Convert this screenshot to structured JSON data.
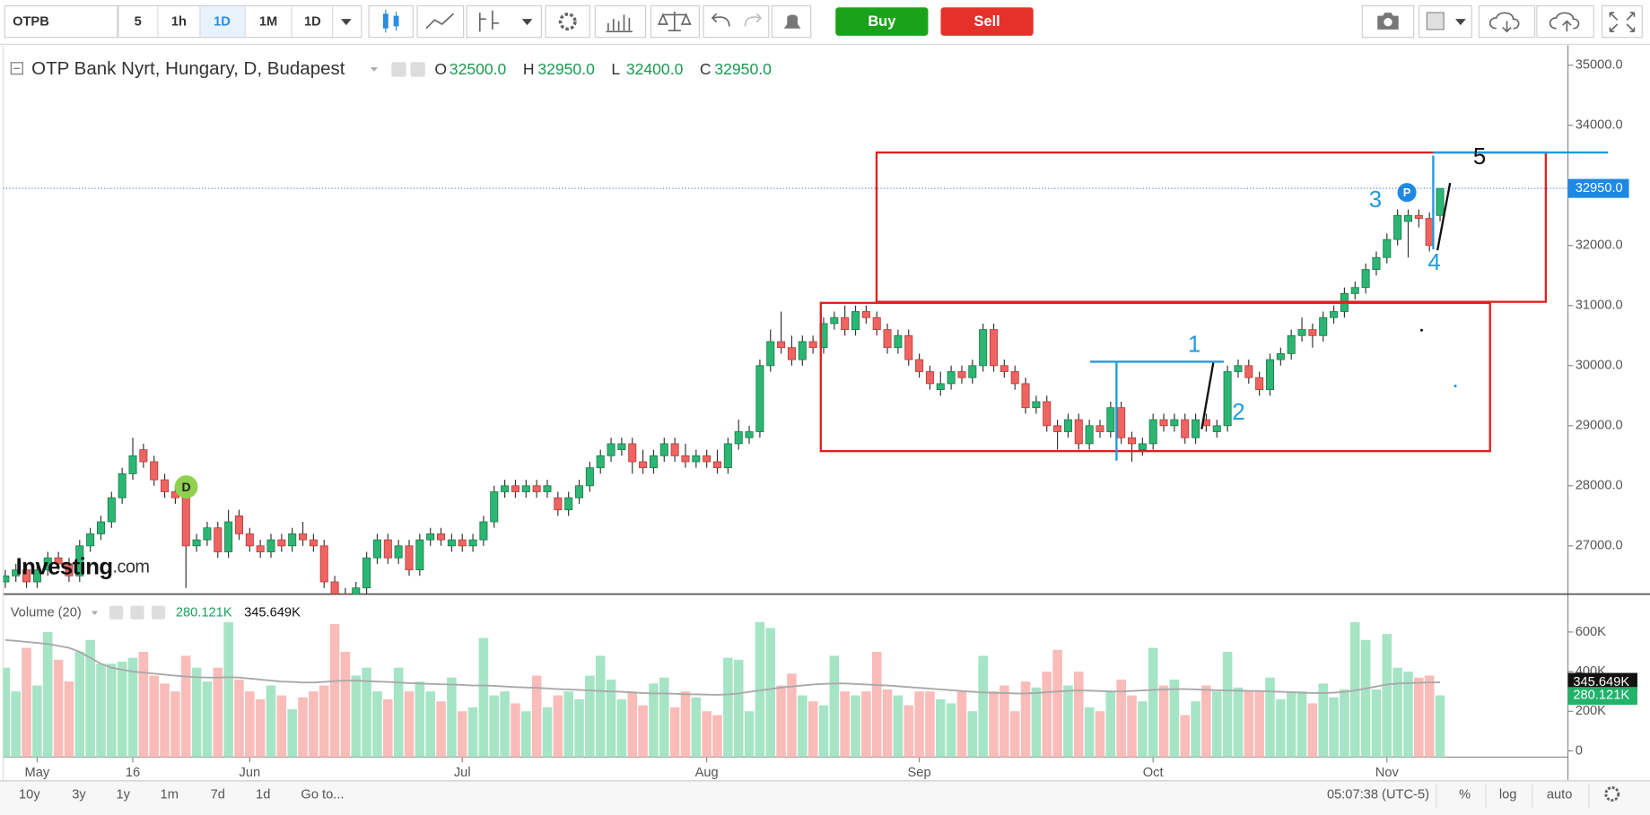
{
  "toolbar": {
    "symbol": "OTPB",
    "intervals": [
      "5",
      "1h",
      "1D",
      "1M",
      "1D"
    ],
    "buy": "Buy",
    "sell": "Sell"
  },
  "chart_data": {
    "type": "candlestick",
    "title": "OTP Bank Nyrt, Hungary, D, Budapest",
    "ohlc_legend": [
      {
        "name": "O",
        "value": 32500,
        "label": "32500.0"
      },
      {
        "name": "H",
        "value": 32950,
        "label": "32950.0"
      },
      {
        "name": "L",
        "value": 32400,
        "label": "32400.0"
      },
      {
        "name": "C",
        "value": 32950,
        "label": "32950.0"
      }
    ],
    "up_color": "#2bb673",
    "down_color": "#ef6461",
    "ylim": [
      26196,
      35333
    ],
    "yticks": [
      {
        "value": 27000,
        "label": "27000.0"
      },
      {
        "value": 28000,
        "label": "28000.0"
      },
      {
        "value": 29000,
        "label": "29000.0"
      },
      {
        "value": 30000,
        "label": "30000.0"
      },
      {
        "value": 31000,
        "label": "31000.0"
      },
      {
        "value": 32000,
        "label": "32000.0"
      },
      {
        "value": 33000,
        "label": "33000.0"
      },
      {
        "value": 34000,
        "label": "34000.0"
      },
      {
        "value": 35000,
        "label": "35000.0"
      }
    ],
    "xticks": [
      {
        "value": 3,
        "label": "May"
      },
      {
        "value": 12,
        "label": "16"
      },
      {
        "value": 23,
        "label": "Jun"
      },
      {
        "value": 43,
        "label": "Jul"
      },
      {
        "value": 66,
        "label": "Aug"
      },
      {
        "value": 86,
        "label": "Sep"
      },
      {
        "value": 108,
        "label": "Oct"
      },
      {
        "value": 130,
        "label": "Nov"
      }
    ],
    "last_price": {
      "value": 32950,
      "label": "32950.0"
    },
    "ohlc": [
      [
        26400,
        26600,
        26300,
        26500
      ],
      [
        26500,
        26700,
        26400,
        26600
      ],
      [
        26600,
        26700,
        26300,
        26400
      ],
      [
        26400,
        26700,
        26300,
        26600
      ],
      [
        26600,
        26900,
        26500,
        26800
      ],
      [
        26800,
        26900,
        26600,
        26700
      ],
      [
        26700,
        26800,
        26400,
        26500
      ],
      [
        26500,
        27100,
        26400,
        27000
      ],
      [
        27000,
        27300,
        26900,
        27200
      ],
      [
        27200,
        27500,
        27100,
        27400
      ],
      [
        27400,
        27900,
        27300,
        27800
      ],
      [
        27800,
        28300,
        27700,
        28200
      ],
      [
        28200,
        28800,
        28100,
        28500
      ],
      [
        28600,
        28700,
        28300,
        28400
      ],
      [
        28400,
        28500,
        28000,
        28100
      ],
      [
        28100,
        28200,
        27800,
        27900
      ],
      [
        27900,
        28000,
        27700,
        27800
      ],
      [
        27800,
        27900,
        26300,
        27000
      ],
      [
        27000,
        27200,
        26900,
        27100
      ],
      [
        27100,
        27400,
        27000,
        27300
      ],
      [
        27300,
        27400,
        26800,
        26900
      ],
      [
        26900,
        27600,
        26800,
        27400
      ],
      [
        27500,
        27600,
        27100,
        27200
      ],
      [
        27200,
        27300,
        26900,
        27000
      ],
      [
        27000,
        27100,
        26800,
        26900
      ],
      [
        26900,
        27200,
        26800,
        27100
      ],
      [
        27100,
        27200,
        26900,
        27000
      ],
      [
        27000,
        27300,
        26900,
        27200
      ],
      [
        27200,
        27400,
        27000,
        27100
      ],
      [
        27100,
        27200,
        26900,
        27000
      ],
      [
        27000,
        27100,
        26300,
        26400
      ],
      [
        26400,
        26500,
        26100,
        26200
      ],
      [
        26200,
        26300,
        26000,
        26100
      ],
      [
        26100,
        26400,
        26000,
        26300
      ],
      [
        26300,
        26900,
        26200,
        26800
      ],
      [
        26800,
        27200,
        26700,
        27100
      ],
      [
        27100,
        27200,
        26700,
        26800
      ],
      [
        26800,
        27100,
        26700,
        27000
      ],
      [
        27000,
        27100,
        26500,
        26600
      ],
      [
        26600,
        27200,
        26500,
        27100
      ],
      [
        27100,
        27300,
        27000,
        27200
      ],
      [
        27200,
        27300,
        27000,
        27100
      ],
      [
        27000,
        27200,
        26900,
        27100
      ],
      [
        27100,
        27200,
        26900,
        27000
      ],
      [
        27000,
        27200,
        26900,
        27100
      ],
      [
        27100,
        27500,
        27000,
        27400
      ],
      [
        27400,
        28000,
        27300,
        27900
      ],
      [
        27900,
        28100,
        27800,
        28000
      ],
      [
        28000,
        28100,
        27800,
        27900
      ],
      [
        27900,
        28100,
        27800,
        28000
      ],
      [
        28000,
        28100,
        27800,
        27900
      ],
      [
        27900,
        28100,
        27800,
        28000
      ],
      [
        27800,
        27900,
        27500,
        27600
      ],
      [
        27600,
        27900,
        27500,
        27800
      ],
      [
        27800,
        28100,
        27700,
        28000
      ],
      [
        28000,
        28400,
        27900,
        28300
      ],
      [
        28300,
        28600,
        28200,
        28500
      ],
      [
        28500,
        28800,
        28400,
        28700
      ],
      [
        28600,
        28800,
        28500,
        28700
      ],
      [
        28700,
        28800,
        28200,
        28400
      ],
      [
        28400,
        28600,
        28200,
        28300
      ],
      [
        28300,
        28600,
        28200,
        28500
      ],
      [
        28500,
        28800,
        28400,
        28700
      ],
      [
        28700,
        28800,
        28400,
        28500
      ],
      [
        28500,
        28700,
        28300,
        28400
      ],
      [
        28400,
        28600,
        28300,
        28500
      ],
      [
        28500,
        28600,
        28300,
        28400
      ],
      [
        28400,
        28600,
        28200,
        28300
      ],
      [
        28300,
        28800,
        28200,
        28700
      ],
      [
        28700,
        29100,
        28600,
        28900
      ],
      [
        28800,
        29000,
        28700,
        28900
      ],
      [
        28900,
        30100,
        28800,
        30000
      ],
      [
        30000,
        30600,
        29900,
        30400
      ],
      [
        30400,
        30900,
        30200,
        30300
      ],
      [
        30300,
        30500,
        30000,
        30100
      ],
      [
        30100,
        30500,
        30000,
        30400
      ],
      [
        30400,
        30500,
        30200,
        30300
      ],
      [
        30300,
        30800,
        30200,
        30700
      ],
      [
        30700,
        30900,
        30600,
        30800
      ],
      [
        30800,
        31000,
        30500,
        30600
      ],
      [
        30600,
        31000,
        30500,
        30900
      ],
      [
        30900,
        31000,
        30700,
        30800
      ],
      [
        30800,
        30900,
        30500,
        30600
      ],
      [
        30600,
        30700,
        30200,
        30300
      ],
      [
        30300,
        30600,
        30200,
        30500
      ],
      [
        30500,
        30600,
        30000,
        30100
      ],
      [
        30100,
        30200,
        29800,
        29900
      ],
      [
        29900,
        30000,
        29600,
        29700
      ],
      [
        29600,
        29900,
        29500,
        29700
      ],
      [
        29700,
        30000,
        29600,
        29900
      ],
      [
        29900,
        30000,
        29700,
        29800
      ],
      [
        29800,
        30100,
        29700,
        30000
      ],
      [
        30000,
        30700,
        29900,
        30600
      ],
      [
        30600,
        30700,
        29900,
        30000
      ],
      [
        30000,
        30100,
        29800,
        29900
      ],
      [
        29900,
        30000,
        29600,
        29700
      ],
      [
        29700,
        29800,
        29200,
        29300
      ],
      [
        29300,
        29500,
        29200,
        29400
      ],
      [
        29400,
        29500,
        28900,
        29000
      ],
      [
        29000,
        29100,
        28600,
        28900
      ],
      [
        28900,
        29200,
        28800,
        29100
      ],
      [
        29100,
        29200,
        28600,
        28700
      ],
      [
        28700,
        29100,
        28600,
        29000
      ],
      [
        29000,
        29100,
        28800,
        28900
      ],
      [
        28900,
        29400,
        28800,
        29300
      ],
      [
        29300,
        29400,
        28700,
        28800
      ],
      [
        28800,
        28900,
        28400,
        28700
      ],
      [
        28600,
        28800,
        28500,
        28700
      ],
      [
        28700,
        29200,
        28600,
        29100
      ],
      [
        29100,
        29200,
        28900,
        29000
      ],
      [
        29000,
        29200,
        28900,
        29100
      ],
      [
        29100,
        29200,
        28700,
        28800
      ],
      [
        28800,
        29200,
        28700,
        29100
      ],
      [
        29100,
        29200,
        28900,
        29000
      ],
      [
        28900,
        29100,
        28800,
        29000
      ],
      [
        29000,
        30000,
        28900,
        29900
      ],
      [
        29900,
        30100,
        29800,
        30000
      ],
      [
        30000,
        30100,
        29700,
        29800
      ],
      [
        29800,
        29900,
        29500,
        29600
      ],
      [
        29600,
        30200,
        29500,
        30100
      ],
      [
        30100,
        30300,
        30000,
        30200
      ],
      [
        30200,
        30600,
        30100,
        30500
      ],
      [
        30500,
        30800,
        30400,
        30600
      ],
      [
        30600,
        30700,
        30300,
        30500
      ],
      [
        30500,
        30900,
        30400,
        30800
      ],
      [
        30800,
        31000,
        30700,
        30900
      ],
      [
        30900,
        31300,
        30800,
        31200
      ],
      [
        31200,
        31400,
        31100,
        31300
      ],
      [
        31300,
        31700,
        31200,
        31600
      ],
      [
        31600,
        31900,
        31500,
        31800
      ],
      [
        31800,
        32200,
        31700,
        32100
      ],
      [
        32100,
        32600,
        32000,
        32500
      ],
      [
        32400,
        32600,
        31800,
        32500
      ],
      [
        32500,
        32600,
        32300,
        32450
      ],
      [
        32450,
        32550,
        31900,
        32000
      ],
      [
        32500,
        32950,
        32400,
        32950
      ]
    ],
    "volume": {
      "name": "Volume (20)",
      "up_color": "#a6e4c6",
      "down_color": "#f9bcb8",
      "ma_color": "#a9a9a9",
      "ylim": [
        0,
        786000
      ],
      "yticks": [
        0,
        {
          "value": 200000,
          "label": "200K"
        },
        {
          "value": 400000,
          "label": "400K"
        },
        {
          "value": 600000,
          "label": "600K"
        }
      ],
      "last": {
        "value": 280121,
        "label": "280.121K"
      },
      "ma_last": {
        "value": 345649,
        "label": "345.649K"
      },
      "values": [
        420000,
        300000,
        520000,
        330000,
        600000,
        460000,
        350000,
        500000,
        560000,
        440000,
        440000,
        450000,
        470000,
        500000,
        380000,
        340000,
        300000,
        480000,
        420000,
        350000,
        420000,
        650000,
        360000,
        300000,
        260000,
        330000,
        280000,
        210000,
        270000,
        300000,
        330000,
        640000,
        500000,
        380000,
        420000,
        300000,
        260000,
        420000,
        300000,
        350000,
        300000,
        250000,
        370000,
        200000,
        220000,
        570000,
        280000,
        300000,
        240000,
        200000,
        380000,
        220000,
        280000,
        300000,
        260000,
        380000,
        480000,
        360000,
        260000,
        300000,
        230000,
        340000,
        370000,
        220000,
        300000,
        270000,
        200000,
        180000,
        470000,
        460000,
        200000,
        650000,
        620000,
        330000,
        390000,
        280000,
        250000,
        230000,
        480000,
        300000,
        280000,
        300000,
        500000,
        310000,
        280000,
        230000,
        300000,
        300000,
        260000,
        240000,
        300000,
        200000,
        480000,
        300000,
        330000,
        200000,
        350000,
        320000,
        400000,
        510000,
        330000,
        400000,
        220000,
        200000,
        300000,
        360000,
        280000,
        250000,
        520000,
        330000,
        360000,
        180000,
        250000,
        330000,
        300000,
        500000,
        320000,
        300000,
        300000,
        370000,
        260000,
        300000,
        300000,
        240000,
        340000,
        270000,
        310000,
        650000,
        560000,
        310000,
        590000,
        420000,
        400000,
        370000,
        380000,
        280121
      ],
      "ma": [
        560000,
        555000,
        550000,
        545000,
        540000,
        530000,
        520000,
        500000,
        470000,
        440000,
        420000,
        410000,
        400000,
        395000,
        390000,
        385000,
        380000,
        375000,
        372000,
        370000,
        370000,
        372000,
        370000,
        365000,
        360000,
        355000,
        350000,
        348000,
        345000,
        345000,
        348000,
        352000,
        355000,
        355000,
        352000,
        350000,
        348000,
        345000,
        342000,
        340000,
        338000,
        336000,
        335000,
        333000,
        330000,
        330000,
        328000,
        325000,
        322000,
        320000,
        318000,
        315000,
        312000,
        310000,
        308000,
        305000,
        302000,
        300000,
        298000,
        295000,
        292000,
        290000,
        290000,
        288000,
        286000,
        285000,
        284000,
        283000,
        285000,
        290000,
        298000,
        305000,
        312000,
        320000,
        325000,
        330000,
        335000,
        338000,
        340000,
        340000,
        338000,
        335000,
        332000,
        330000,
        326000,
        322000,
        318000,
        314000,
        310000,
        306000,
        302000,
        298000,
        295000,
        293000,
        292000,
        290000,
        290000,
        292000,
        296000,
        300000,
        303000,
        305000,
        304000,
        302000,
        300000,
        300000,
        302000,
        305000,
        308000,
        310000,
        312000,
        312000,
        310000,
        308000,
        306000,
        305000,
        304000,
        303000,
        302000,
        300000,
        298000,
        296000,
        294000,
        292000,
        292000,
        294000,
        298000,
        305000,
        315000,
        325000,
        335000,
        340000,
        342000,
        344000,
        345000,
        345649
      ]
    }
  },
  "annotations": [
    "1",
    "2",
    "3",
    "4",
    "5"
  ],
  "markers": {
    "dividend": "D",
    "pattern": "P"
  },
  "logo": {
    "brand": "Investing",
    "suffix": ".com"
  },
  "bottom_bar": {
    "ranges": [
      "10y",
      "3y",
      "1y",
      "1m",
      "7d",
      "1d"
    ],
    "goto": "Go to...",
    "time": "05:07:38 (UTC-5)",
    "percent": "%",
    "log": "log",
    "auto": "auto"
  }
}
